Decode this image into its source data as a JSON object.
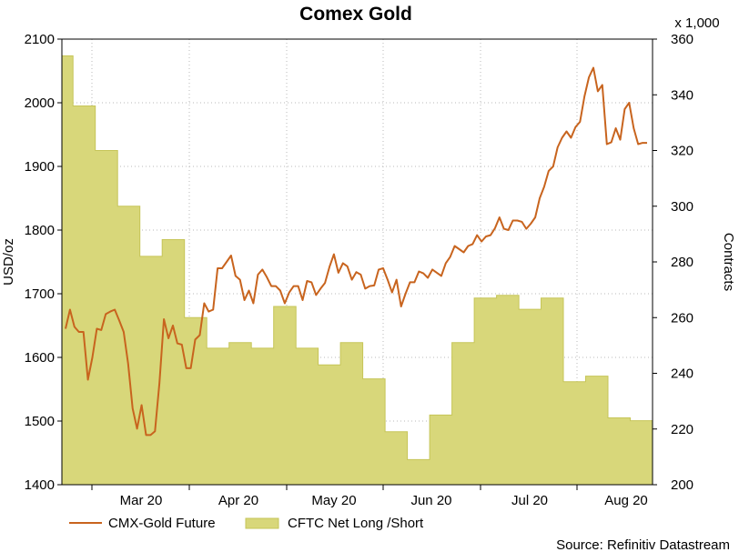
{
  "chart_data": {
    "type": "line",
    "title": "Comex Gold",
    "source": "Source: Refinitiv Datastream",
    "ylabel_left": "USD/oz",
    "ylabel_right": "Contracts",
    "right_multiplier": "x 1,000",
    "ylim_left": [
      1400,
      2100
    ],
    "ylim_right": [
      200,
      360
    ],
    "yticks_left": [
      "1400",
      "1500",
      "1600",
      "1700",
      "1800",
      "1900",
      "2000",
      "2100"
    ],
    "yticks_right": [
      "200",
      "220",
      "240",
      "260",
      "280",
      "300",
      "320",
      "340",
      "360"
    ],
    "xticks": [
      "Mar 20",
      "Apr 20",
      "May 20",
      "Jun 20",
      "Jul 20",
      "Aug 20"
    ],
    "grid": true,
    "legend_position": "bottom",
    "colors": {
      "line": "#c8641e",
      "area": "#d8d77a",
      "area_edge": "#c6c558"
    },
    "series": [
      {
        "name": "CMX-Gold Future",
        "type": "line",
        "axis": "left",
        "y": [
          1645,
          1675,
          1648,
          1640,
          1640,
          1565,
          1600,
          1645,
          1643,
          1668,
          1672,
          1675,
          1658,
          1640,
          1590,
          1520,
          1488,
          1525,
          1478,
          1478,
          1484,
          1560,
          1660,
          1630,
          1650,
          1622,
          1620,
          1583,
          1583,
          1628,
          1635,
          1685,
          1672,
          1675,
          1740,
          1740,
          1750,
          1760,
          1728,
          1722,
          1690,
          1705,
          1685,
          1730,
          1738,
          1726,
          1712,
          1712,
          1705,
          1685,
          1702,
          1712,
          1712,
          1690,
          1720,
          1718,
          1698,
          1708,
          1717,
          1742,
          1762,
          1733,
          1748,
          1743,
          1722,
          1734,
          1730,
          1708,
          1712,
          1713,
          1738,
          1740,
          1722,
          1702,
          1722,
          1680,
          1700,
          1718,
          1718,
          1735,
          1732,
          1725,
          1738,
          1733,
          1728,
          1748,
          1758,
          1775,
          1770,
          1765,
          1775,
          1778,
          1792,
          1782,
          1790,
          1792,
          1803,
          1820,
          1802,
          1800,
          1815,
          1815,
          1813,
          1802,
          1810,
          1820,
          1850,
          1868,
          1893,
          1900,
          1930,
          1945,
          1955,
          1945,
          1962,
          1970,
          2010,
          2040,
          2055,
          2018,
          2028,
          1935,
          1938,
          1960,
          1942,
          1990,
          2000,
          1960,
          1935,
          1937,
          1937
        ]
      },
      {
        "name": "CFTC Net Long /Short",
        "type": "area",
        "axis": "right",
        "weekly": [
          354,
          336,
          336,
          320,
          320,
          300,
          300,
          282,
          282,
          288,
          288,
          260,
          260,
          249,
          249,
          251,
          251,
          249,
          249,
          264,
          264,
          249,
          249,
          243,
          243,
          251,
          251,
          238,
          238,
          219,
          219,
          209,
          209,
          225,
          225,
          251,
          251,
          267,
          267,
          268,
          268,
          263,
          263,
          267,
          267,
          237,
          237,
          239,
          239,
          224,
          224,
          223,
          223
        ]
      }
    ]
  }
}
